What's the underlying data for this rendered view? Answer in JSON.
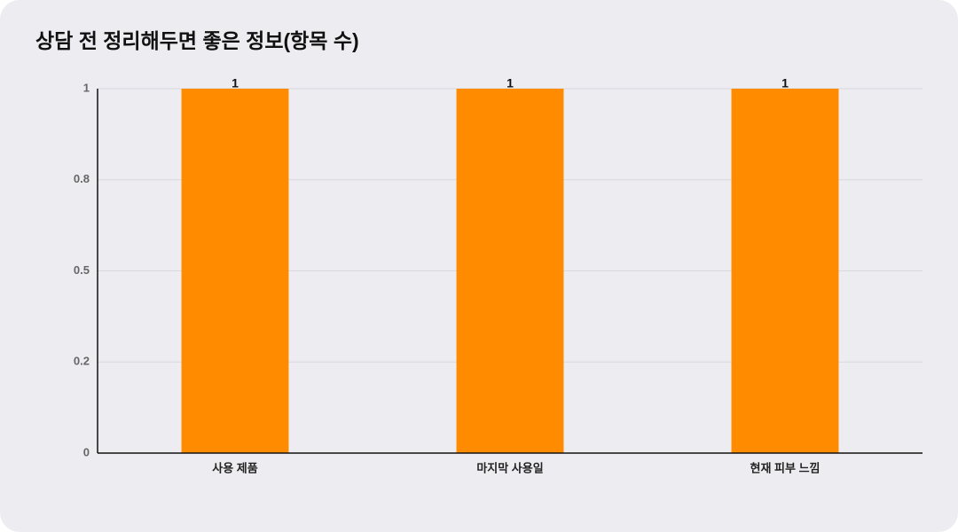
{
  "chart_data": {
    "type": "bar",
    "title": "상담 전 정리해두면 좋은 정보(항목 수)",
    "categories": [
      "사용 제품",
      "마지막 사용일",
      "현재 피부 느낌"
    ],
    "values": [
      1,
      1,
      1
    ],
    "color": "#ff8c00",
    "ylim": [
      0,
      1
    ],
    "yticks": [
      0,
      {
        "value": 0.25,
        "label": "0.2"
      },
      0.5,
      {
        "value": 0.75,
        "label": "0.8"
      },
      1
    ],
    "grid": true
  }
}
